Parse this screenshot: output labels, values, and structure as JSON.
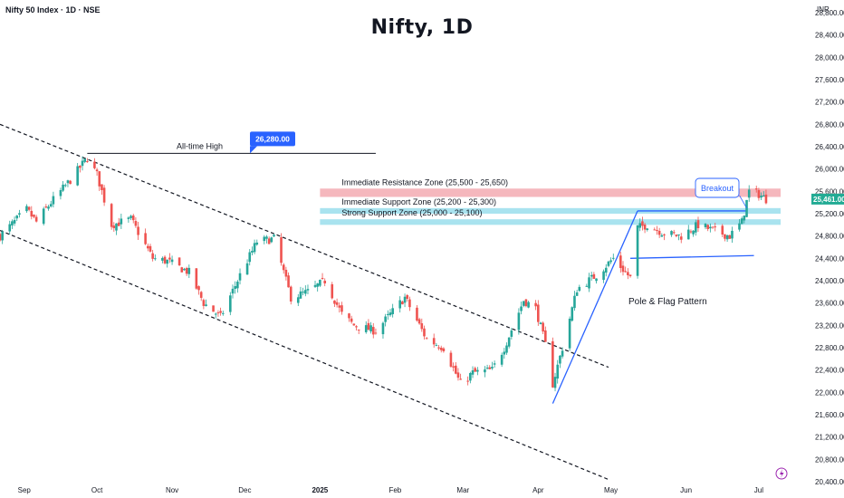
{
  "header": {
    "symbol_label": "Nifty 50 Index · 1D · NSE",
    "title": "Nifty, 1D",
    "currency": "INR"
  },
  "colors": {
    "up": "#26a69a",
    "down": "#ef5350",
    "resistance_zone": "#f5b7bd",
    "support_zone": "#a9e3ef",
    "flag_line": "#2962ff",
    "price_badge": "#22ab94",
    "ath_badge": "#2962ff"
  },
  "chart_data": {
    "type": "candlestick",
    "y_axis": {
      "range": [
        20400,
        28800
      ],
      "ticks": [
        "20,400.00",
        "20,800.00",
        "21,200.00",
        "21,600.00",
        "22,000.00",
        "22,400.00",
        "22,800.00",
        "23,200.00",
        "23,600.00",
        "24,000.00",
        "24,400.00",
        "24,800.00",
        "25,200.00",
        "25,600.00",
        "26,000.00",
        "26,400.00",
        "26,800.00",
        "27,200.00",
        "27,600.00",
        "28,000.00",
        "28,400.00",
        "28,800.00"
      ]
    },
    "x_axis": {
      "range": [
        "2024-08-22",
        "2025-07-10"
      ],
      "ticks": [
        {
          "date": "2024-09-01",
          "label": "Sep"
        },
        {
          "date": "2024-10-01",
          "label": "Oct"
        },
        {
          "date": "2024-11-01",
          "label": "Nov"
        },
        {
          "date": "2024-12-01",
          "label": "Dec"
        },
        {
          "date": "2025-01-01",
          "label": "2025"
        },
        {
          "date": "2025-02-01",
          "label": "Feb"
        },
        {
          "date": "2025-03-01",
          "label": "Mar"
        },
        {
          "date": "2025-04-01",
          "label": "Apr"
        },
        {
          "date": "2025-05-01",
          "label": "May"
        },
        {
          "date": "2025-06-01",
          "label": "Jun"
        },
        {
          "date": "2025-07-01",
          "label": "Jul"
        }
      ]
    },
    "anchors": [
      {
        "date": "2024-08-22",
        "close": 24800
      },
      {
        "date": "2024-09-02",
        "close": 25270
      },
      {
        "date": "2024-09-06",
        "close": 25050
      },
      {
        "date": "2024-09-12",
        "close": 25400
      },
      {
        "date": "2024-09-20",
        "close": 25800
      },
      {
        "date": "2024-09-27",
        "close": 26200
      },
      {
        "date": "2024-10-01",
        "close": 25900
      },
      {
        "date": "2024-10-07",
        "close": 25000
      },
      {
        "date": "2024-10-15",
        "close": 25100
      },
      {
        "date": "2024-10-24",
        "close": 24400
      },
      {
        "date": "2024-10-30",
        "close": 24350
      },
      {
        "date": "2024-11-08",
        "close": 24150
      },
      {
        "date": "2024-11-14",
        "close": 23600
      },
      {
        "date": "2024-11-21",
        "close": 23350
      },
      {
        "date": "2024-11-29",
        "close": 24100
      },
      {
        "date": "2024-12-06",
        "close": 24700
      },
      {
        "date": "2024-12-13",
        "close": 24750
      },
      {
        "date": "2024-12-20",
        "close": 23700
      },
      {
        "date": "2024-12-27",
        "close": 23800
      },
      {
        "date": "2025-01-03",
        "close": 24000
      },
      {
        "date": "2025-01-10",
        "close": 23400
      },
      {
        "date": "2025-01-15",
        "close": 23200
      },
      {
        "date": "2025-01-24",
        "close": 23100
      },
      {
        "date": "2025-01-31",
        "close": 23450
      },
      {
        "date": "2025-02-05",
        "close": 23700
      },
      {
        "date": "2025-02-14",
        "close": 22950
      },
      {
        "date": "2025-02-21",
        "close": 22800
      },
      {
        "date": "2025-02-28",
        "close": 22150
      },
      {
        "date": "2025-03-05",
        "close": 22350
      },
      {
        "date": "2025-03-13",
        "close": 22400
      },
      {
        "date": "2025-03-18",
        "close": 22800
      },
      {
        "date": "2025-03-26",
        "close": 23650
      },
      {
        "date": "2025-03-31",
        "close": 23500
      },
      {
        "date": "2025-04-04",
        "close": 22850
      },
      {
        "date": "2025-04-07",
        "close": 22150
      },
      {
        "date": "2025-04-11",
        "close": 22800
      },
      {
        "date": "2025-04-17",
        "close": 23850
      },
      {
        "date": "2025-04-25",
        "close": 24100
      },
      {
        "date": "2025-05-02",
        "close": 24400
      },
      {
        "date": "2025-05-09",
        "close": 24050
      },
      {
        "date": "2025-05-12",
        "close": 24950
      },
      {
        "date": "2025-05-16",
        "close": 25000
      },
      {
        "date": "2025-05-23",
        "close": 24850
      },
      {
        "date": "2025-05-30",
        "close": 24800
      },
      {
        "date": "2025-06-06",
        "close": 25000
      },
      {
        "date": "2025-06-12",
        "close": 24900
      },
      {
        "date": "2025-06-19",
        "close": 24800
      },
      {
        "date": "2025-06-24",
        "close": 25050
      },
      {
        "date": "2025-06-27",
        "close": 25600
      },
      {
        "date": "2025-07-01",
        "close": 25550
      },
      {
        "date": "2025-07-04",
        "close": 25461
      }
    ],
    "last_price": {
      "value": 25461,
      "label": "25,461.00"
    },
    "all_time_high": {
      "label": "All-time High",
      "value": 26280,
      "badge": "26,280.00",
      "date_from": "2024-09-27",
      "date_to": "2025-01-24"
    },
    "zones": [
      {
        "label": "Immediate Resistance Zone (25,500 - 25,650)",
        "low": 25500,
        "high": 25650,
        "date_from": "2025-01-01",
        "date_to": "2025-07-10",
        "fill": "#f5b7bd"
      },
      {
        "label": "Immediate Support Zone (25,200 - 25,300)",
        "low": 25200,
        "high": 25300,
        "date_from": "2025-01-01",
        "date_to": "2025-07-10",
        "fill": "#a9e3ef"
      },
      {
        "label": "Strong Support Zone (25,000 - 25,100)",
        "low": 25000,
        "high": 25100,
        "date_from": "2025-01-01",
        "date_to": "2025-07-10",
        "fill": "#a9e3ef"
      }
    ],
    "channel": {
      "upper": [
        {
          "date": "2024-08-22",
          "value": 26800
        },
        {
          "date": "2025-04-30",
          "value": 22450
        }
      ],
      "lower": [
        {
          "date": "2024-08-22",
          "value": 24900
        },
        {
          "date": "2025-04-30",
          "value": 20440
        }
      ]
    },
    "pattern": {
      "label": "Pole & Flag Pattern",
      "pole": [
        {
          "date": "2025-04-07",
          "value": 21800
        },
        {
          "date": "2025-05-12",
          "value": 25250
        }
      ],
      "flag_upper": [
        {
          "date": "2025-05-12",
          "value": 25250
        },
        {
          "date": "2025-06-26",
          "value": 25250
        }
      ],
      "flag_lower": [
        {
          "date": "2025-05-09",
          "value": 24400
        },
        {
          "date": "2025-06-29",
          "value": 24450
        }
      ]
    },
    "breakout": {
      "label": "Breakout",
      "date": "2025-06-26",
      "value": 25300
    }
  }
}
